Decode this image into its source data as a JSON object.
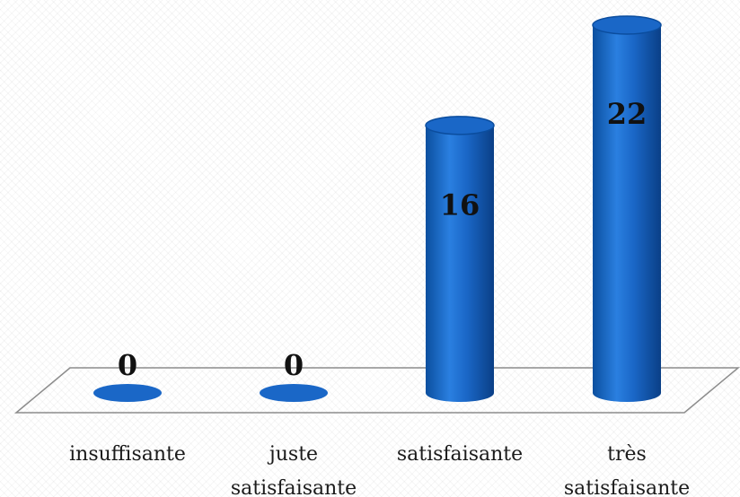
{
  "chart_data": {
    "type": "bar",
    "style": "3d-cylinder",
    "title": "",
    "xlabel": "",
    "ylabel": "",
    "categories": [
      [
        "insuffisante"
      ],
      [
        "juste",
        "satisfaisante"
      ],
      [
        "satisfaisante"
      ],
      [
        "très",
        "satisfaisante"
      ]
    ],
    "values": [
      0,
      0,
      16,
      22
    ],
    "data_labels": [
      "0",
      "0",
      "16",
      "22"
    ],
    "ylim": [
      0,
      22
    ],
    "grid": false,
    "legend": "none",
    "bar_color": "#1a67c7",
    "bar_edge_color": "#0b4d9e",
    "floor_color": "#8c8c8c"
  }
}
